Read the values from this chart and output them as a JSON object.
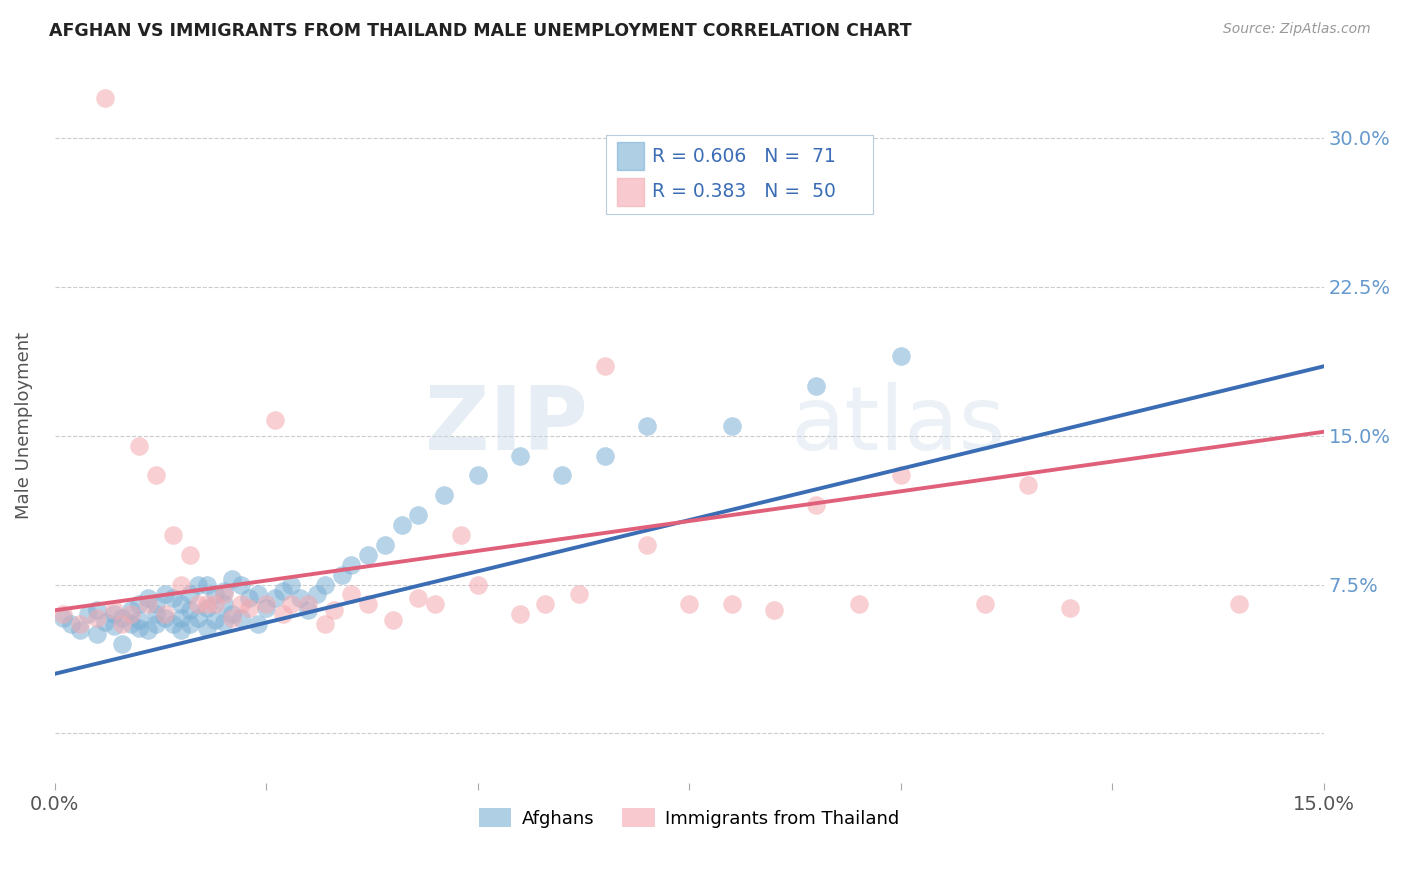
{
  "title": "AFGHAN VS IMMIGRANTS FROM THAILAND MALE UNEMPLOYMENT CORRELATION CHART",
  "source": "Source: ZipAtlas.com",
  "ylabel": "Male Unemployment",
  "y_ticks": [
    0.0,
    0.075,
    0.15,
    0.225,
    0.3
  ],
  "y_tick_labels": [
    "",
    "7.5%",
    "15.0%",
    "22.5%",
    "30.0%"
  ],
  "x_range": [
    0.0,
    0.15
  ],
  "y_range": [
    -0.025,
    0.335
  ],
  "watermark_zip": "ZIP",
  "watermark_atlas": "atlas",
  "legend_line1": "R = 0.606   N =  71",
  "legend_line2": "R = 0.383   N =  50",
  "legend_label_blue": "Afghans",
  "legend_label_pink": "Immigrants from Thailand",
  "blue_color": "#7BAFD4",
  "pink_color": "#F4A8B0",
  "trend_blue_color": "#3B6DB5",
  "trend_pink_color": "#E0607A",
  "background_color": "#FFFFFF",
  "grid_color": "#CCCCCC",
  "title_color": "#222222",
  "axis_label_color": "#555555",
  "right_tick_color": "#6699CC",
  "afghans_x": [
    0.001,
    0.002,
    0.003,
    0.004,
    0.005,
    0.005,
    0.006,
    0.007,
    0.007,
    0.008,
    0.008,
    0.009,
    0.009,
    0.01,
    0.01,
    0.01,
    0.011,
    0.011,
    0.012,
    0.012,
    0.012,
    0.013,
    0.013,
    0.014,
    0.014,
    0.015,
    0.015,
    0.015,
    0.016,
    0.016,
    0.016,
    0.017,
    0.017,
    0.018,
    0.018,
    0.018,
    0.019,
    0.019,
    0.02,
    0.02,
    0.02,
    0.021,
    0.021,
    0.022,
    0.022,
    0.023,
    0.024,
    0.024,
    0.025,
    0.026,
    0.027,
    0.028,
    0.029,
    0.03,
    0.031,
    0.032,
    0.034,
    0.035,
    0.037,
    0.039,
    0.041,
    0.043,
    0.046,
    0.05,
    0.055,
    0.06,
    0.065,
    0.07,
    0.08,
    0.09,
    0.1
  ],
  "afghans_y": [
    0.058,
    0.055,
    0.052,
    0.06,
    0.05,
    0.062,
    0.056,
    0.054,
    0.06,
    0.045,
    0.058,
    0.055,
    0.062,
    0.053,
    0.057,
    0.065,
    0.052,
    0.068,
    0.055,
    0.06,
    0.065,
    0.058,
    0.07,
    0.055,
    0.068,
    0.052,
    0.058,
    0.065,
    0.055,
    0.062,
    0.07,
    0.058,
    0.075,
    0.053,
    0.063,
    0.075,
    0.057,
    0.07,
    0.056,
    0.065,
    0.072,
    0.06,
    0.078,
    0.058,
    0.075,
    0.068,
    0.055,
    0.07,
    0.063,
    0.068,
    0.072,
    0.075,
    0.068,
    0.062,
    0.07,
    0.075,
    0.08,
    0.085,
    0.09,
    0.095,
    0.105,
    0.11,
    0.12,
    0.13,
    0.14,
    0.13,
    0.14,
    0.155,
    0.155,
    0.175,
    0.19
  ],
  "thailand_x": [
    0.001,
    0.003,
    0.005,
    0.006,
    0.007,
    0.008,
    0.009,
    0.01,
    0.011,
    0.012,
    0.013,
    0.014,
    0.015,
    0.016,
    0.017,
    0.018,
    0.019,
    0.02,
    0.021,
    0.022,
    0.023,
    0.025,
    0.026,
    0.027,
    0.028,
    0.03,
    0.032,
    0.033,
    0.035,
    0.037,
    0.04,
    0.043,
    0.045,
    0.048,
    0.05,
    0.055,
    0.058,
    0.062,
    0.065,
    0.07,
    0.075,
    0.08,
    0.085,
    0.09,
    0.095,
    0.1,
    0.11,
    0.115,
    0.12,
    0.14
  ],
  "thailand_y": [
    0.06,
    0.055,
    0.058,
    0.32,
    0.062,
    0.055,
    0.06,
    0.145,
    0.065,
    0.13,
    0.06,
    0.1,
    0.075,
    0.09,
    0.065,
    0.065,
    0.065,
    0.07,
    0.058,
    0.065,
    0.063,
    0.065,
    0.158,
    0.06,
    0.065,
    0.065,
    0.055,
    0.062,
    0.07,
    0.065,
    0.057,
    0.068,
    0.065,
    0.1,
    0.075,
    0.06,
    0.065,
    0.07,
    0.185,
    0.095,
    0.065,
    0.065,
    0.062,
    0.115,
    0.065,
    0.13,
    0.065,
    0.125,
    0.063,
    0.065
  ],
  "blue_trend_x": [
    0.0,
    0.15
  ],
  "blue_trend_y": [
    0.03,
    0.185
  ],
  "pink_trend_x": [
    0.0,
    0.15
  ],
  "pink_trend_y": [
    0.062,
    0.152
  ]
}
